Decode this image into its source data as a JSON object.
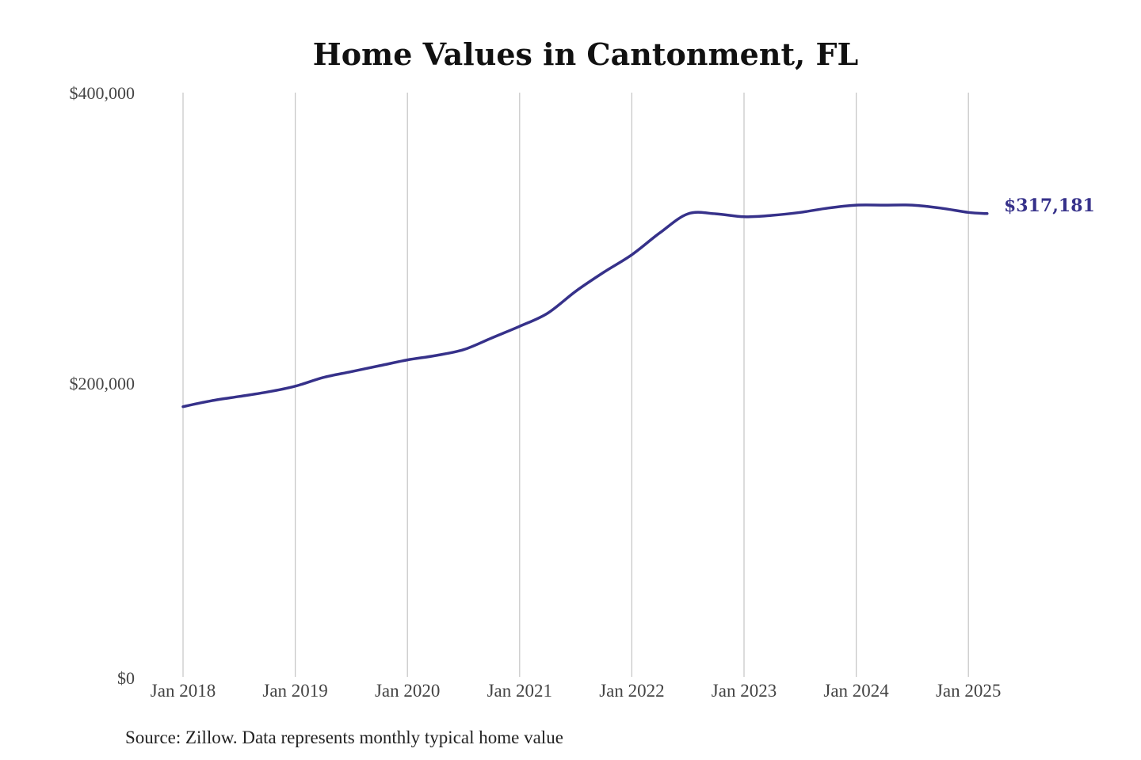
{
  "chart_data": {
    "type": "line",
    "title": "Home Values in Cantonment, FL",
    "xlabel": "",
    "ylabel": "",
    "ylim": [
      0,
      400000
    ],
    "y_ticks": [
      "$400,000",
      "$200,000",
      "$0"
    ],
    "x_ticks": [
      "Jan 2018",
      "Jan 2019",
      "Jan 2020",
      "Jan 2021",
      "Jan 2022",
      "Jan 2023",
      "Jan 2024",
      "Jan 2025"
    ],
    "grid": "vertical",
    "line_color": "#36318a",
    "end_label": "$317,181",
    "source": "Source: Zillow. Data represents monthly typical home value",
    "series": [
      {
        "x": [
          "2018-01",
          "2018-04",
          "2018-07",
          "2018-10",
          "2019-01",
          "2019-04",
          "2019-07",
          "2019-10",
          "2020-01",
          "2020-04",
          "2020-07",
          "2020-10",
          "2021-01",
          "2021-04",
          "2021-07",
          "2021-10",
          "2022-01",
          "2022-04",
          "2022-07",
          "2022-10",
          "2023-01",
          "2023-04",
          "2023-07",
          "2023-10",
          "2024-01",
          "2024-04",
          "2024-07",
          "2024-10",
          "2025-01",
          "2025-03"
        ],
        "values": [
          185000,
          189000,
          192000,
          195000,
          199000,
          205000,
          209000,
          213000,
          217000,
          220000,
          224000,
          232000,
          240000,
          249000,
          264000,
          277000,
          289000,
          304000,
          317000,
          317000,
          315000,
          316000,
          318000,
          321000,
          323000,
          323000,
          323000,
          321000,
          318000,
          317181
        ]
      }
    ]
  }
}
